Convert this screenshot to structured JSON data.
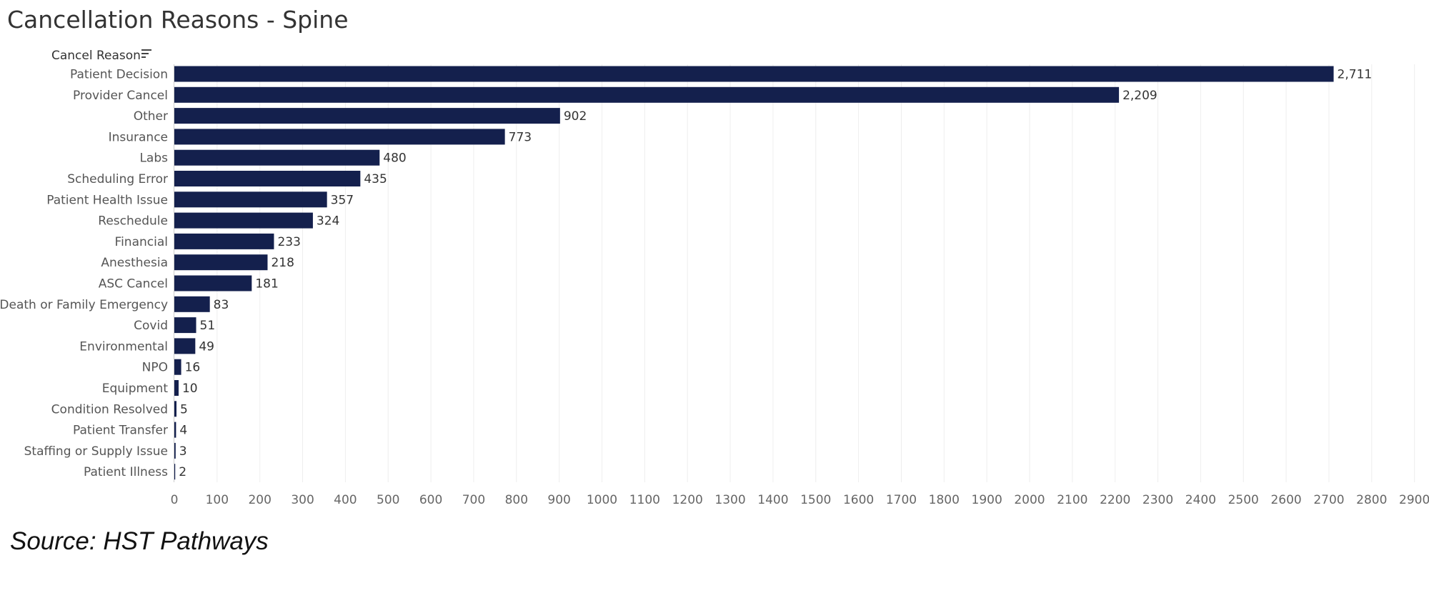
{
  "chart_title": "Cancellation Reasons - Spine",
  "source_note": "Source: HST Pathways",
  "colors": {
    "bar": "#14204d",
    "grid": "#eeeeee",
    "axis_line": "#cccccc"
  },
  "icons": {
    "sort": "sort-icon"
  },
  "chart_data": {
    "type": "bar",
    "orientation": "horizontal",
    "title": "Cancellation Reasons - Spine",
    "ylabel": "Cancel Reason",
    "xlabel": "",
    "categories": [
      "Patient Decision",
      "Provider Cancel",
      "Other",
      "Insurance",
      "Labs",
      "Scheduling Error",
      "Patient Health Issue",
      "Reschedule",
      "Financial",
      "Anesthesia",
      "ASC Cancel",
      "Death or Family Emergency",
      "Covid",
      "Environmental",
      "NPO",
      "Equipment",
      "Condition Resolved",
      "Patient Transfer",
      "Staffing or Supply Issue",
      "Patient Illness"
    ],
    "values": [
      2711,
      2209,
      902,
      773,
      480,
      435,
      357,
      324,
      233,
      218,
      181,
      83,
      51,
      49,
      16,
      10,
      5,
      4,
      3,
      2
    ],
    "value_labels": [
      "2,711",
      "2,209",
      "902",
      "773",
      "480",
      "435",
      "357",
      "324",
      "233",
      "218",
      "181",
      "83",
      "51",
      "49",
      "16",
      "10",
      "5",
      "4",
      "3",
      "2"
    ],
    "xlim": [
      0,
      2900
    ],
    "xticks": [
      0,
      100,
      200,
      300,
      400,
      500,
      600,
      700,
      800,
      900,
      1000,
      1100,
      1200,
      1300,
      1400,
      1500,
      1600,
      1700,
      1800,
      1900,
      2000,
      2100,
      2200,
      2300,
      2400,
      2500,
      2600,
      2700,
      2800,
      2900
    ],
    "grid": true,
    "legend": "none"
  }
}
